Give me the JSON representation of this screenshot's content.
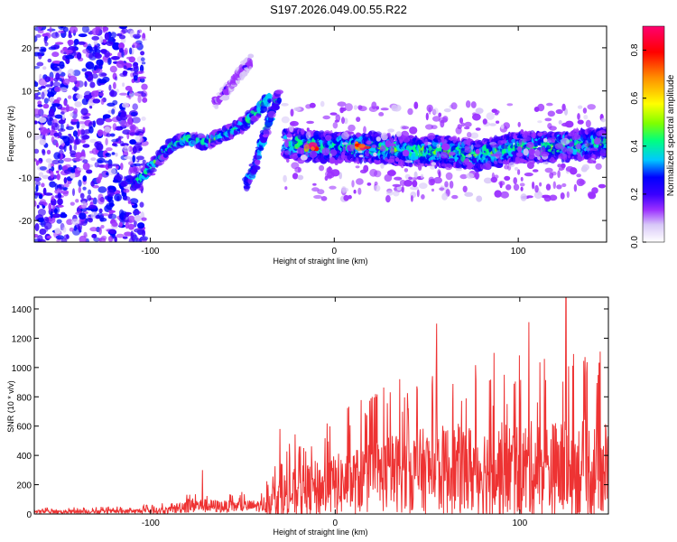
{
  "title": "S197.2026.049.00.55.R22",
  "chart_data": [
    {
      "type": "heatmap",
      "name": "spectrogram",
      "xlabel": "Height of straight line (km)",
      "ylabel": "Frequency (Hz)",
      "xlim": [
        -163,
        148
      ],
      "ylim": [
        -25,
        25
      ],
      "xticks": [
        -100,
        0,
        100
      ],
      "xtick_labels": [
        "-100",
        "0",
        "100"
      ],
      "yticks": [
        -20,
        -10,
        0,
        10,
        20
      ],
      "ytick_labels": [
        "-20",
        "-10",
        "0",
        "10",
        "20"
      ],
      "colorbar": {
        "label": "Normalized spectral amplitude",
        "range": [
          0,
          0.9
        ],
        "ticks": [
          0,
          0.2,
          0.4,
          0.6,
          0.8
        ],
        "tick_labels": [
          "0.0",
          "0.2",
          "0.4",
          "0.6",
          "0.8"
        ],
        "colors": [
          "#ffffff",
          "#d8c8f8",
          "#9b30ff",
          "#3a00ff",
          "#0000ff",
          "#00c8ff",
          "#00ff7f",
          "#7fff00",
          "#ffff00",
          "#ff9000",
          "#ff0000",
          "#ff0070"
        ]
      },
      "features": [
        {
          "kind": "noise_region",
          "x_range": [
            -163,
            -103
          ],
          "freq_range": [
            -25,
            25
          ],
          "level": 0.18
        },
        {
          "kind": "trace",
          "points": [
            [
              -110,
              -12
            ],
            [
              -100,
              -8
            ],
            [
              -90,
              -3
            ],
            [
              -80,
              -1
            ],
            [
              -70,
              -2
            ],
            [
              -60,
              0
            ],
            [
              -50,
              2
            ],
            [
              -42,
              5
            ],
            [
              -35,
              9
            ]
          ],
          "level": 0.35
        },
        {
          "kind": "trace",
          "points": [
            [
              -65,
              7
            ],
            [
              -55,
              12
            ],
            [
              -45,
              17
            ]
          ],
          "level": 0.12
        },
        {
          "kind": "trace",
          "points": [
            [
              -48,
              -12
            ],
            [
              -42,
              -6
            ],
            [
              -38,
              0
            ],
            [
              -34,
              5
            ],
            [
              -30,
              9
            ]
          ],
          "level": 0.3
        },
        {
          "kind": "band",
          "points": [
            [
              -27,
              -2
            ],
            [
              -10,
              -3
            ],
            [
              0,
              -3
            ],
            [
              20,
              -3
            ],
            [
              40,
              -4
            ],
            [
              60,
              -4
            ],
            [
              80,
              -5
            ],
            [
              100,
              -3
            ],
            [
              120,
              -3
            ],
            [
              148,
              -2
            ]
          ],
          "level": 0.35
        },
        {
          "kind": "peak",
          "points": [
            [
              -12,
              -3
            ],
            [
              15,
              -3
            ]
          ],
          "level": 0.85
        }
      ]
    },
    {
      "type": "line",
      "name": "snr",
      "xlabel": "Height of straight line (km)",
      "ylabel": "SNR (10 * v/v)",
      "xlim": [
        -163,
        148
      ],
      "ylim": [
        0,
        1480
      ],
      "xticks": [
        -100,
        0,
        100
      ],
      "xtick_labels": [
        "-100",
        "0",
        "100"
      ],
      "yticks": [
        0,
        200,
        400,
        600,
        800,
        1000,
        1200,
        1400
      ],
      "ytick_labels": [
        "0",
        "200",
        "400",
        "600",
        "800",
        "1000",
        "1200",
        "1400"
      ],
      "color": "#ee3333",
      "envelope": [
        {
          "x": -163,
          "base": 15,
          "spread": 20
        },
        {
          "x": -110,
          "base": 18,
          "spread": 25
        },
        {
          "x": -90,
          "base": 25,
          "spread": 40
        },
        {
          "x": -80,
          "base": 60,
          "spread": 90
        },
        {
          "x": -60,
          "base": 50,
          "spread": 70
        },
        {
          "x": -40,
          "base": 55,
          "spread": 70
        },
        {
          "x": -30,
          "base": 120,
          "spread": 260
        },
        {
          "x": -10,
          "base": 170,
          "spread": 330
        },
        {
          "x": 10,
          "base": 220,
          "spread": 380
        },
        {
          "x": 30,
          "base": 280,
          "spread": 450
        },
        {
          "x": 60,
          "base": 300,
          "spread": 520
        },
        {
          "x": 100,
          "base": 300,
          "spread": 560
        },
        {
          "x": 148,
          "base": 300,
          "spread": 580
        }
      ],
      "peaks": [
        {
          "x": -72,
          "y": 300
        },
        {
          "x": -30,
          "y": 580
        },
        {
          "x": 35,
          "y": 920
        },
        {
          "x": 55,
          "y": 1300
        },
        {
          "x": 86,
          "y": 1100
        },
        {
          "x": 105,
          "y": 1310
        },
        {
          "x": 125,
          "y": 1480
        },
        {
          "x": 143,
          "y": 1030
        }
      ]
    }
  ]
}
